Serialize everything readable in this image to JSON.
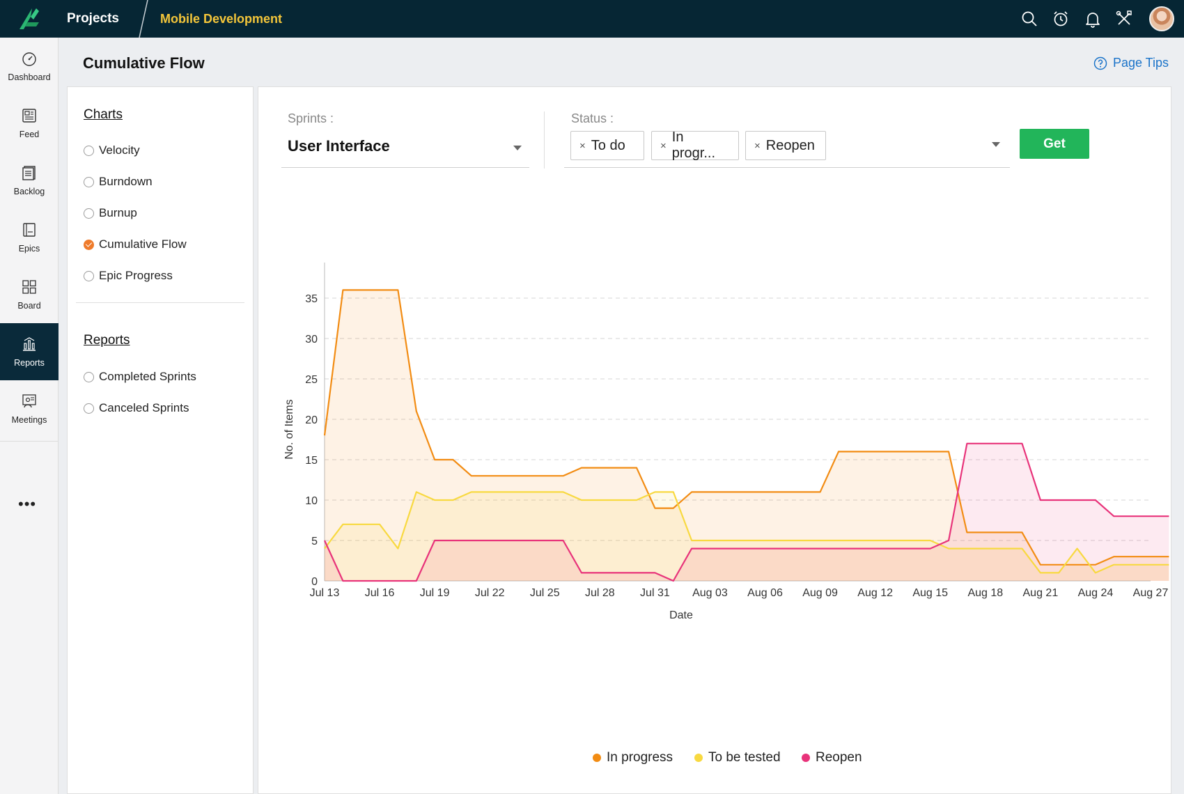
{
  "topbar": {
    "projects_label": "Projects",
    "project_name": "Mobile Development"
  },
  "nav": {
    "items": [
      {
        "label": "Dashboard",
        "icon": "gauge-icon"
      },
      {
        "label": "Feed",
        "icon": "feed-icon"
      },
      {
        "label": "Backlog",
        "icon": "backlog-icon"
      },
      {
        "label": "Epics",
        "icon": "epics-icon"
      },
      {
        "label": "Board",
        "icon": "board-icon"
      },
      {
        "label": "Reports",
        "icon": "reports-icon",
        "active": true
      },
      {
        "label": "Meetings",
        "icon": "meetings-icon"
      }
    ],
    "more": "•••"
  },
  "page": {
    "title": "Cumulative Flow",
    "tips": "Page Tips"
  },
  "side": {
    "charts_heading": "Charts",
    "charts": [
      "Velocity",
      "Burndown",
      "Burnup",
      "Cumulative Flow",
      "Epic Progress"
    ],
    "selected": "Cumulative Flow",
    "reports_heading": "Reports",
    "reports": [
      "Completed Sprints",
      "Canceled Sprints"
    ]
  },
  "filters": {
    "sprints_label": "Sprints :",
    "sprint_value": "User Interface",
    "status_label": "Status :",
    "status_chips": [
      "To do",
      "In progr...",
      "Reopen"
    ],
    "chip_remove": "×",
    "get_label": "Get"
  },
  "colors": {
    "in_progress": "#f28c13",
    "to_be_tested": "#f8d940",
    "reopen": "#e8337a",
    "accent": "#22b55a",
    "link": "#1a73c9"
  },
  "chart_data": {
    "type": "area",
    "xlabel": "Date",
    "ylabel": "No. of Items",
    "ylim": [
      0,
      35
    ],
    "yticks": [
      0,
      5,
      10,
      15,
      20,
      25,
      30,
      35
    ],
    "xticks": [
      "Jul 13",
      "Jul 16",
      "Jul 19",
      "Jul 22",
      "Jul 25",
      "Jul 28",
      "Jul 31",
      "Aug 03",
      "Aug 06",
      "Aug 09",
      "Aug 12",
      "Aug 15",
      "Aug 18",
      "Aug 21",
      "Aug 24",
      "Aug 27"
    ],
    "grid": true,
    "legend_position": "bottom",
    "x_unit": "day",
    "start_date": "Jul 13",
    "series": [
      {
        "name": "In progress",
        "color": "#f28c13",
        "points": [
          [
            0,
            18
          ],
          [
            1,
            36
          ],
          [
            4,
            36
          ],
          [
            5,
            21
          ],
          [
            6,
            15
          ],
          [
            7,
            15
          ],
          [
            8,
            13
          ],
          [
            13,
            13
          ],
          [
            14,
            14
          ],
          [
            17,
            14
          ],
          [
            18,
            9
          ],
          [
            19,
            9
          ],
          [
            20,
            11
          ],
          [
            27,
            11
          ],
          [
            28,
            16
          ],
          [
            34,
            16
          ],
          [
            35,
            6
          ],
          [
            38,
            6
          ],
          [
            39,
            2
          ],
          [
            42,
            2
          ],
          [
            43,
            3
          ],
          [
            46,
            3
          ]
        ]
      },
      {
        "name": "To be tested",
        "color": "#f8d940",
        "points": [
          [
            0,
            4
          ],
          [
            1,
            7
          ],
          [
            3,
            7
          ],
          [
            4,
            4
          ],
          [
            5,
            11
          ],
          [
            6,
            10
          ],
          [
            7,
            10
          ],
          [
            8,
            11
          ],
          [
            13,
            11
          ],
          [
            14,
            10
          ],
          [
            17,
            10
          ],
          [
            18,
            11
          ],
          [
            19,
            11
          ],
          [
            20,
            5
          ],
          [
            33,
            5
          ],
          [
            34,
            4
          ],
          [
            38,
            4
          ],
          [
            39,
            1
          ],
          [
            40,
            1
          ],
          [
            41,
            4
          ],
          [
            42,
            1
          ],
          [
            43,
            2
          ],
          [
            46,
            2
          ]
        ]
      },
      {
        "name": "Reopen",
        "color": "#e8337a",
        "points": [
          [
            0,
            5
          ],
          [
            1,
            0
          ],
          [
            5,
            0
          ],
          [
            6,
            5
          ],
          [
            13,
            5
          ],
          [
            14,
            1
          ],
          [
            18,
            1
          ],
          [
            19,
            0
          ],
          [
            20,
            4
          ],
          [
            33,
            4
          ],
          [
            34,
            5
          ],
          [
            35,
            17
          ],
          [
            38,
            17
          ],
          [
            39,
            10
          ],
          [
            42,
            10
          ],
          [
            43,
            8
          ],
          [
            46,
            8
          ]
        ]
      }
    ]
  }
}
